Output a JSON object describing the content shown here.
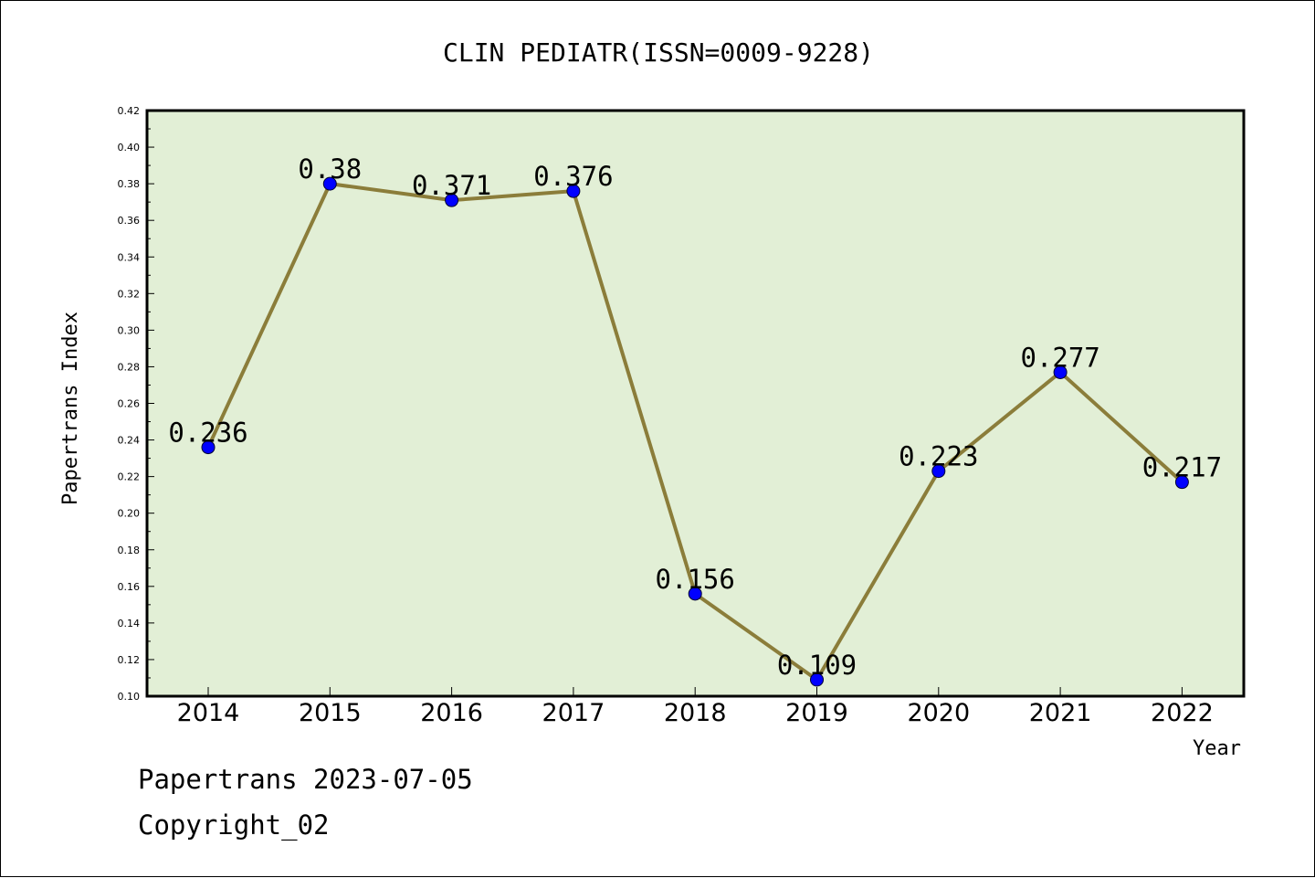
{
  "chart_data": {
    "type": "line",
    "title": "CLIN PEDIATR(ISSN=0009-9228)",
    "xlabel": "Year",
    "ylabel": "Papertrans Index",
    "categories": [
      "2014",
      "2015",
      "2016",
      "2017",
      "2018",
      "2019",
      "2020",
      "2021",
      "2022"
    ],
    "series": [
      {
        "values": [
          0.236,
          0.38,
          0.371,
          0.376,
          0.156,
          0.109,
          0.223,
          0.277,
          0.217
        ],
        "labels": [
          "0.236",
          "0.38",
          "0.371",
          "0.376",
          "0.156",
          "0.109",
          "0.223",
          "0.277",
          "0.217"
        ],
        "line_color": "#8b7d3a",
        "marker_color": "#0000ff"
      }
    ],
    "ylim": [
      0.1,
      0.42
    ],
    "yticks": [
      "0.10",
      "0.12",
      "0.14",
      "0.16",
      "0.18",
      "0.20",
      "0.22",
      "0.24",
      "0.26",
      "0.28",
      "0.30",
      "0.32",
      "0.34",
      "0.36",
      "0.38",
      "0.40",
      "0.42"
    ],
    "grid": false,
    "plot_background": "#e2efd6"
  },
  "footer": {
    "line1": "Papertrans 2023-07-05",
    "line2": "Copyright_02"
  }
}
